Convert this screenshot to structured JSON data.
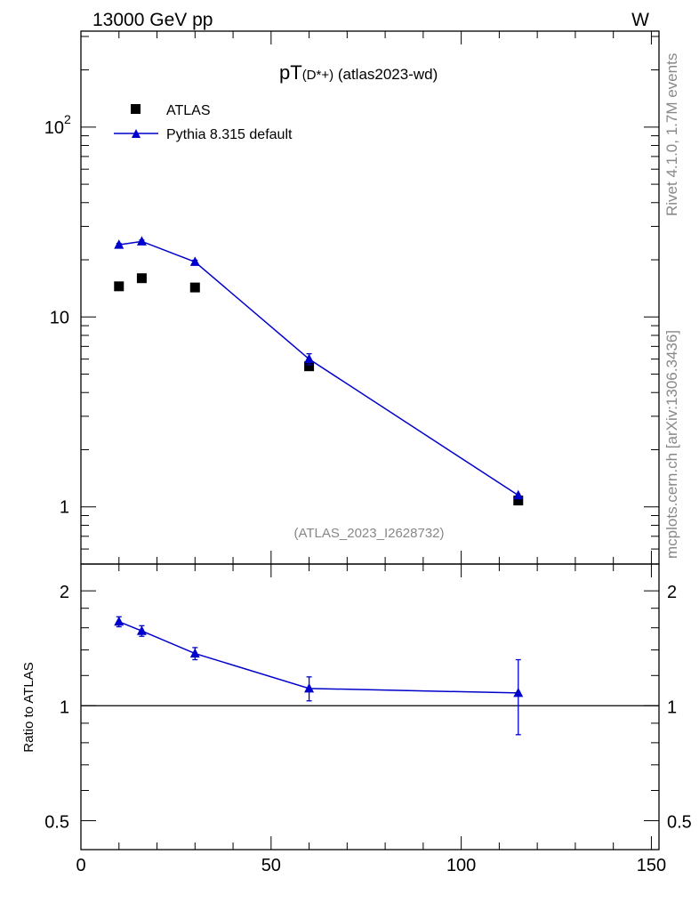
{
  "header": {
    "left": "13000 GeV pp",
    "right": "W"
  },
  "side_labels": {
    "rivet": "Rivet 4.1.0,  1.7M events",
    "mcplots": "mcplots.cern.ch [arXiv:1306.3436]"
  },
  "colors": {
    "mc": "#0000cc",
    "data": "#000000",
    "grey": "#888888"
  },
  "chart_data": [
    {
      "type": "scatter",
      "title_main": "pT",
      "title_sub": "(D*+)",
      "title_tail": " (atlas2023-wd)",
      "analysis_id": "(ATLAS_2023_I2628732)",
      "yscale": "log",
      "xlim": [
        0,
        152
      ],
      "ylim": [
        0.5,
        320
      ],
      "ytick_labels": [
        {
          "value": 1,
          "label": "1"
        },
        {
          "value": 10,
          "label": "10"
        },
        {
          "value": 100,
          "label": "10",
          "sup": "2"
        }
      ],
      "legend": {
        "position": "top-left",
        "entries": [
          {
            "name": "ATLAS",
            "marker": "square"
          },
          {
            "name": "Pythia 8.315 default",
            "marker": "triangle-line"
          }
        ]
      },
      "series": [
        {
          "name": "ATLAS",
          "x": [
            10,
            16,
            30,
            60,
            115
          ],
          "y": [
            14.5,
            16.0,
            14.3,
            5.5,
            1.08
          ]
        },
        {
          "name": "Pythia 8.315 default",
          "x": [
            10,
            16,
            30,
            60,
            115
          ],
          "y": [
            24.0,
            25.0,
            19.5,
            6.0,
            1.15
          ],
          "err": [
            0.4,
            0.4,
            0.4,
            0.4,
            0.17
          ]
        }
      ]
    },
    {
      "type": "line",
      "ylabel": "Ratio to ATLAS",
      "xlim": [
        0,
        152
      ],
      "ylim": [
        0.42,
        2.35
      ],
      "reference": 1,
      "ytick_labels": [
        {
          "value": 0.5,
          "label": "0.5"
        },
        {
          "value": 1,
          "label": "1"
        },
        {
          "value": 2,
          "label": "2"
        }
      ],
      "xtick_labels": [
        {
          "value": 0,
          "label": "0"
        },
        {
          "value": 50,
          "label": "50"
        },
        {
          "value": 100,
          "label": "100"
        },
        {
          "value": 150,
          "label": "150"
        }
      ],
      "series": [
        {
          "name": "Pythia 8.315 default",
          "x": [
            10,
            16,
            30,
            60,
            115
          ],
          "y": [
            1.66,
            1.57,
            1.37,
            1.11,
            1.08
          ],
          "err": [
            0.05,
            0.05,
            0.05,
            0.08,
            0.24
          ]
        }
      ]
    }
  ]
}
